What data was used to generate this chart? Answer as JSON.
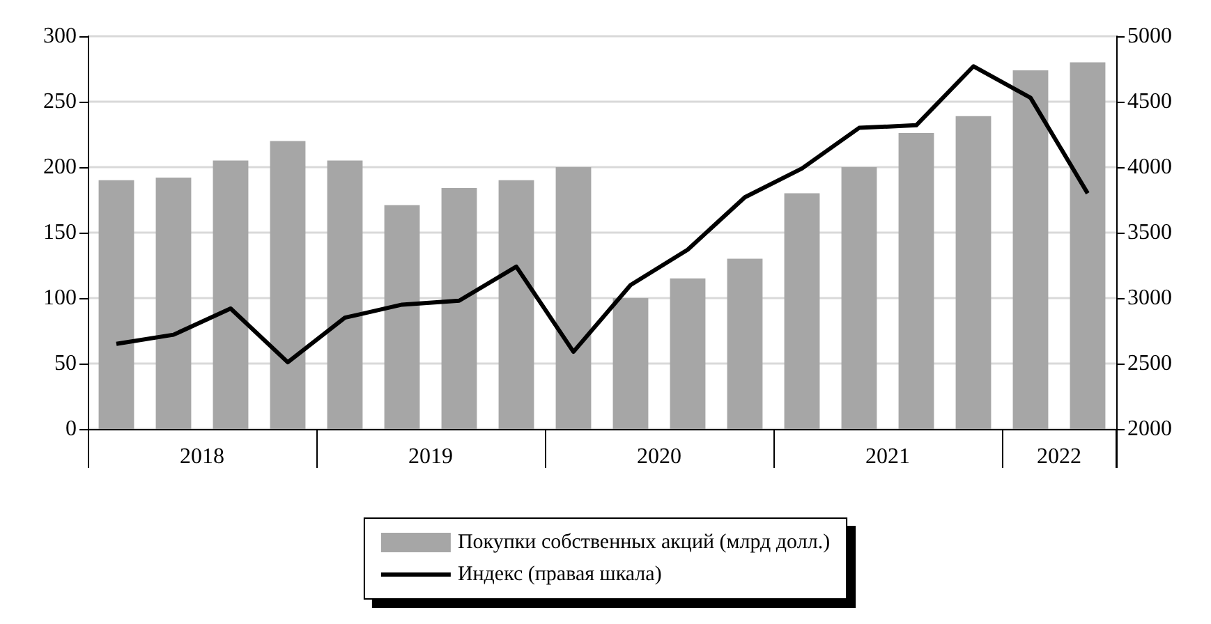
{
  "chart_data": {
    "type": "bar",
    "categories": [
      null,
      null,
      null,
      null,
      null,
      null,
      null,
      null,
      null,
      null,
      null,
      null,
      null,
      null,
      null,
      null,
      null,
      null
    ],
    "series": [
      {
        "name": "Покупки собственных акций (млрд долл.)",
        "color": "#a6a6a6",
        "values": [
          190,
          192,
          205,
          220,
          205,
          171,
          184,
          190,
          200,
          100,
          115,
          130,
          180,
          200,
          226,
          239,
          274,
          280
        ]
      },
      {
        "name": "Индекс (правая шкала)",
        "type": "line",
        "axis": "y2",
        "color": "#000000",
        "values": [
          2650,
          2720,
          2920,
          2510,
          2850,
          2950,
          2980,
          3240,
          2590,
          3100,
          3370,
          3770,
          3990,
          4300,
          4320,
          4770,
          4530,
          3800
        ]
      }
    ],
    "ylim": [
      0,
      300
    ],
    "yticks": [
      0,
      50,
      100,
      150,
      200,
      250,
      300
    ],
    "y2lim": [
      2000,
      5000
    ],
    "y2ticks": [
      2000,
      2500,
      3000,
      3500,
      4000,
      4500,
      5000
    ],
    "annotations": [
      "2018",
      "2019",
      "2020",
      "2021",
      "2022"
    ],
    "grid": "y",
    "legend": "bottom",
    "marker": "none",
    "line_style": "solid"
  }
}
